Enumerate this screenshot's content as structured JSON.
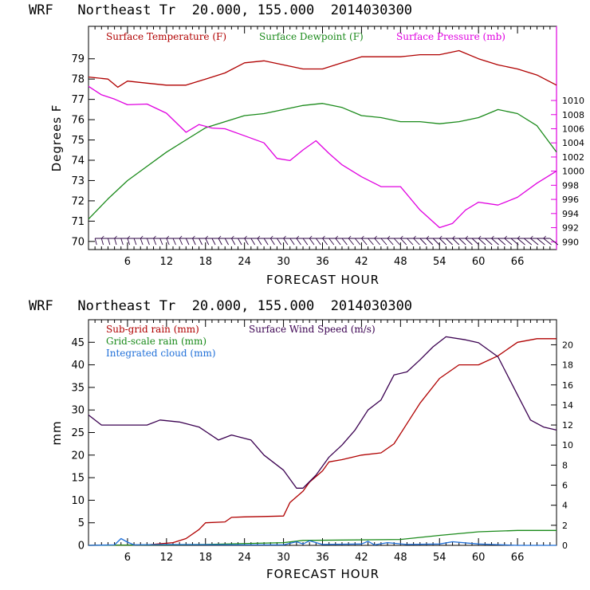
{
  "chart_data": [
    {
      "type": "line",
      "title": "WRF   Northeast Tr  20.000, 155.000  2014030300",
      "xlabel": "FORECAST HOUR",
      "ylabel": "Degrees F",
      "xlim": [
        0,
        72
      ],
      "ylim": [
        69.6,
        80.6
      ],
      "y2lim": [
        988.9,
        1020.5
      ],
      "xticks": [
        "6",
        "12",
        "18",
        "24",
        "30",
        "36",
        "42",
        "48",
        "54",
        "60",
        "66"
      ],
      "yticks": [
        "70",
        "71",
        "72",
        "73",
        "74",
        "75",
        "76",
        "77",
        "78",
        "79"
      ],
      "y2ticks": [
        "990",
        "992",
        "994",
        "996",
        "998",
        "1000",
        "1002",
        "1004",
        "1006",
        "1008",
        "1010"
      ],
      "legend_placement": "top",
      "series": [
        {
          "name": "Surface Temperature (F)",
          "color": "#b00000",
          "axis": "left",
          "x": [
            0,
            3,
            4.5,
            6,
            9,
            12,
            15,
            18,
            21,
            24,
            27,
            30,
            33,
            36,
            39,
            42,
            45,
            48,
            51,
            54,
            57,
            60,
            63,
            66,
            69,
            72
          ],
          "values": [
            78.1,
            78.0,
            77.6,
            77.9,
            77.8,
            77.7,
            77.7,
            78.0,
            78.3,
            78.8,
            78.9,
            78.7,
            78.5,
            78.5,
            78.8,
            79.1,
            79.1,
            79.1,
            79.2,
            79.2,
            79.4,
            79.0,
            78.7,
            78.5,
            78.2,
            77.7
          ]
        },
        {
          "name": "Surface Dewpoint (F)",
          "color": "#1a8a1a",
          "axis": "left",
          "x": [
            0,
            3,
            6,
            9,
            12,
            15,
            18,
            21,
            24,
            27,
            30,
            33,
            36,
            39,
            42,
            45,
            48,
            51,
            54,
            57,
            60,
            63,
            66,
            69,
            72
          ],
          "values": [
            71.1,
            72.1,
            73.0,
            73.7,
            74.4,
            75.0,
            75.6,
            75.9,
            76.2,
            76.3,
            76.5,
            76.7,
            76.8,
            76.6,
            76.2,
            76.1,
            75.9,
            75.9,
            75.8,
            75.9,
            76.1,
            76.5,
            76.3,
            75.7,
            74.4
          ]
        },
        {
          "name": "Surface Pressure (mb)",
          "color": "#e000e0",
          "axis": "right",
          "x": [
            0,
            2,
            4,
            6,
            9,
            12,
            15,
            17,
            19,
            21,
            24,
            27,
            29,
            31,
            33,
            35,
            37,
            39,
            42,
            45,
            48,
            51,
            54,
            56,
            58,
            60,
            63,
            66,
            69,
            72
          ],
          "values": [
            1012.0,
            1010.8,
            1010.2,
            1009.4,
            1009.5,
            1008.2,
            1005.5,
            1006.6,
            1006.1,
            1006.0,
            1005.0,
            1004.0,
            1001.8,
            1001.5,
            1003.0,
            1004.3,
            1002.5,
            1000.9,
            999.2,
            997.8,
            997.8,
            994.5,
            992.0,
            992.6,
            994.5,
            995.6,
            995.2,
            996.3,
            998.3,
            1000.0
          ]
        }
      ],
      "wind_barbs": true
    },
    {
      "type": "line",
      "title": "WRF   Northeast Tr  20.000, 155.000  2014030300",
      "xlabel": "FORECAST HOUR",
      "ylabel": "mm",
      "xlim": [
        0,
        72
      ],
      "ylim": [
        0,
        50
      ],
      "y2lim": [
        0,
        22.5
      ],
      "xticks": [
        "6",
        "12",
        "18",
        "24",
        "30",
        "36",
        "42",
        "48",
        "54",
        "60",
        "66"
      ],
      "yticks": [
        "0",
        "5",
        "10",
        "15",
        "20",
        "25",
        "30",
        "35",
        "40",
        "45"
      ],
      "y2ticks": [
        "0",
        "2",
        "4",
        "6",
        "8",
        "10",
        "12",
        "14",
        "16",
        "18",
        "20"
      ],
      "legend_placement": "top-left",
      "series": [
        {
          "name": "Sub-grid rain (mm)",
          "color": "#b00000",
          "axis": "left",
          "x": [
            0,
            9,
            13,
            15,
            17,
            18,
            21,
            22,
            24,
            27,
            30,
            31,
            33,
            34,
            36,
            37,
            39,
            42,
            45,
            47,
            49,
            51,
            54,
            57,
            60,
            63,
            66,
            69,
            72
          ],
          "values": [
            0,
            0.1,
            0.6,
            1.5,
            3.5,
            5.0,
            5.2,
            6.2,
            6.3,
            6.4,
            6.5,
            9.5,
            12.0,
            14.0,
            16.5,
            18.5,
            19.0,
            20.0,
            20.5,
            22.5,
            27.0,
            31.5,
            37.0,
            40.0,
            40.0,
            42.0,
            45.0,
            45.8,
            45.8
          ]
        },
        {
          "name": "Grid-scale rain (mm)",
          "color": "#1a8a1a",
          "axis": "left",
          "x": [
            0,
            18,
            30,
            33,
            48,
            54,
            60,
            66,
            72
          ],
          "values": [
            0,
            0.2,
            0.6,
            1.1,
            1.3,
            2.2,
            3.0,
            3.3,
            3.3
          ]
        },
        {
          "name": "Integrated cloud (mm)",
          "color": "#1f6fd8",
          "axis": "left",
          "x": [
            0,
            4,
            5,
            6,
            7,
            12,
            24,
            30,
            32,
            33,
            34,
            36,
            42,
            43,
            44,
            46,
            49,
            54,
            56,
            60,
            62,
            66,
            72
          ],
          "values": [
            0,
            0.1,
            1.5,
            0.7,
            0.1,
            0.2,
            0.1,
            0.1,
            0.8,
            0.3,
            1.0,
            0.2,
            0.3,
            0.9,
            0.1,
            0.6,
            0.2,
            0.3,
            0.8,
            0.3,
            0.2,
            0.0,
            0.0
          ]
        },
        {
          "name": "Surface Wind Speed (m/s)",
          "color": "#3a0050",
          "axis": "right",
          "x": [
            0,
            2,
            6,
            9,
            11,
            14,
            17,
            20,
            22,
            25,
            27,
            30,
            32,
            33,
            35,
            37,
            39,
            41,
            43,
            45,
            47,
            49,
            51,
            53,
            55,
            58,
            60,
            63,
            66,
            68,
            70,
            72
          ],
          "values": [
            13.0,
            12.0,
            12.0,
            12.0,
            12.5,
            12.3,
            11.8,
            10.5,
            11.0,
            10.5,
            9.0,
            7.5,
            5.7,
            5.7,
            7.0,
            8.8,
            10.0,
            11.5,
            13.5,
            14.5,
            17.0,
            17.3,
            18.5,
            19.8,
            20.8,
            20.5,
            20.2,
            18.8,
            15.0,
            12.5,
            11.8,
            11.5
          ]
        }
      ]
    }
  ]
}
